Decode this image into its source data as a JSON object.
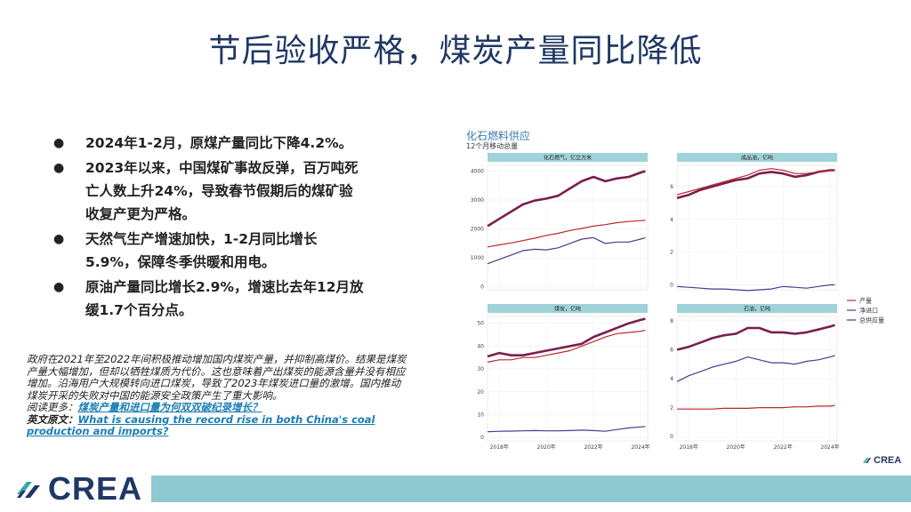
{
  "slide": {
    "title": "节后验收严格，煤炭产量同比降低",
    "bullets": [
      "2024年1-2月，原煤产量同比下降4.2%。",
      "2023年以来，中国煤矿事故反弹，百万吨死亡人数上升24%，导致春节假期后的煤矿验收复产更为严格。",
      "天然气生产增速加快，1-2月同比增长5.9%，保障冬季供暖和用电。",
      "原油产量同比增长2.9%，增速比去年12月放缓1.7个百分点。"
    ],
    "bullet_symbol": "●",
    "note": {
      "body": "政府在2021年至2022年间积极推动增加国内煤炭产量，并抑制高煤价。结果是煤炭产量大幅增加，但却以牺牲煤质为代价。这也意味着产出煤炭的能源含量并没有相应增加。沿海用户大规模转向进口煤炭，导致了2023年煤炭进口量的激增。国内推动煤炭开采的失败对中国的能源安全政策产生了重大影响。",
      "read_more_prefix": "阅读更多：",
      "read_more_link": "煤炭产量和进口量为何双双破纪录增长？",
      "en_prefix": "英文原文：",
      "en_link": "What is causing the record rise in both China's coal production and imports?"
    },
    "logo_text": "CREA",
    "small_logo_text": "CREA"
  },
  "chart_data": {
    "type": "line",
    "title": "化石燃料供应",
    "subtitle": "12个月移动总量",
    "x_tick_labels": [
      "2018年",
      "2020年",
      "2022年",
      "2024年"
    ],
    "x_ticks": [
      2018,
      2020,
      2022,
      2024
    ],
    "xlim": [
      2017.5,
      2024.3
    ],
    "legend": {
      "placement": "right",
      "entries": [
        "产量",
        "净进口",
        "总供应量"
      ]
    },
    "colors": {
      "产量": "#c0272d",
      "净进口": "#4a3b8f",
      "总供应量": "#7b1f4b",
      "header": "#9fd3d9"
    },
    "panels": [
      {
        "title": "化石燃气，亿立方米",
        "ylim": [
          -100,
          4200
        ],
        "yticks": [
          0,
          1000,
          2000,
          3000,
          4000
        ],
        "series": [
          {
            "name": "总供应量",
            "x": [
              2017.5,
              2018.0,
              2018.5,
              2019.0,
              2019.5,
              2020.0,
              2020.5,
              2021.0,
              2021.5,
              2022.0,
              2022.5,
              2023.0,
              2023.5,
              2024.0,
              2024.2
            ],
            "y": [
              2100,
              2350,
              2600,
              2850,
              2980,
              3050,
              3150,
              3400,
              3650,
              3800,
              3650,
              3750,
              3800,
              3950,
              4000
            ]
          },
          {
            "name": "产量",
            "x": [
              2017.5,
              2018.0,
              2018.5,
              2019.0,
              2019.5,
              2020.0,
              2020.5,
              2021.0,
              2021.5,
              2022.0,
              2022.5,
              2023.0,
              2023.5,
              2024.0,
              2024.2
            ],
            "y": [
              1380,
              1450,
              1520,
              1600,
              1680,
              1780,
              1850,
              1950,
              2020,
              2100,
              2150,
              2220,
              2260,
              2290,
              2300
            ]
          },
          {
            "name": "净进口",
            "x": [
              2017.5,
              2018.0,
              2018.5,
              2019.0,
              2019.5,
              2020.0,
              2020.5,
              2021.0,
              2021.5,
              2022.0,
              2022.5,
              2023.0,
              2023.5,
              2024.0,
              2024.2
            ],
            "y": [
              800,
              950,
              1100,
              1250,
              1300,
              1280,
              1350,
              1500,
              1650,
              1700,
              1500,
              1550,
              1550,
              1650,
              1700
            ]
          }
        ]
      },
      {
        "title": "成品油，亿吨",
        "ylim": [
          -0.3,
          7.3
        ],
        "yticks": [
          0,
          2,
          4,
          6
        ],
        "series": [
          {
            "name": "总供应量",
            "x": [
              2017.5,
              2018.0,
              2018.5,
              2019.0,
              2019.5,
              2020.0,
              2020.5,
              2021.0,
              2021.5,
              2022.0,
              2022.5,
              2023.0,
              2023.5,
              2024.0,
              2024.2
            ],
            "y": [
              5.3,
              5.5,
              5.8,
              6.0,
              6.2,
              6.4,
              6.5,
              6.8,
              6.9,
              6.8,
              6.6,
              6.7,
              6.9,
              7.0,
              7.0
            ]
          },
          {
            "name": "产量",
            "x": [
              2017.5,
              2018.0,
              2018.5,
              2019.0,
              2019.5,
              2020.0,
              2020.5,
              2021.0,
              2021.5,
              2022.0,
              2022.5,
              2023.0,
              2023.5,
              2024.0,
              2024.2
            ],
            "y": [
              5.5,
              5.7,
              5.9,
              6.1,
              6.3,
              6.5,
              6.7,
              7.0,
              7.1,
              7.0,
              6.8,
              6.8,
              6.9,
              7.0,
              7.0
            ]
          },
          {
            "name": "净进口",
            "x": [
              2017.5,
              2018.0,
              2018.5,
              2019.0,
              2019.5,
              2020.0,
              2020.5,
              2021.0,
              2021.5,
              2022.0,
              2022.5,
              2023.0,
              2023.5,
              2024.0,
              2024.2
            ],
            "y": [
              -0.1,
              -0.15,
              -0.2,
              -0.25,
              -0.25,
              -0.3,
              -0.35,
              -0.3,
              -0.25,
              -0.1,
              -0.15,
              -0.2,
              -0.1,
              0,
              0
            ]
          }
        ]
      },
      {
        "title": "煤炭，亿吨",
        "ylim": [
          -1.5,
          53
        ],
        "yticks": [
          0,
          10,
          20,
          30,
          40,
          50
        ],
        "series": [
          {
            "name": "总供应量",
            "x": [
              2017.5,
              2018.0,
              2018.5,
              2019.0,
              2019.5,
              2020.0,
              2020.5,
              2021.0,
              2021.5,
              2022.0,
              2022.5,
              2023.0,
              2023.5,
              2024.0,
              2024.2
            ],
            "y": [
              35.5,
              37,
              36,
              36,
              37,
              38,
              39,
              40,
              41,
              44,
              46,
              48,
              50,
              51.5,
              52
            ]
          },
          {
            "name": "产量",
            "x": [
              2017.5,
              2018.0,
              2018.5,
              2019.0,
              2019.5,
              2020.0,
              2020.5,
              2021.0,
              2021.5,
              2022.0,
              2022.5,
              2023.0,
              2023.5,
              2024.0,
              2024.2
            ],
            "y": [
              33,
              34,
              34,
              35,
              35,
              36,
              37,
              38,
              40,
              42,
              44,
              45.5,
              46,
              46.5,
              47
            ]
          },
          {
            "name": "净进口",
            "x": [
              2017.5,
              2018.0,
              2018.5,
              2019.0,
              2019.5,
              2020.0,
              2020.5,
              2021.0,
              2021.5,
              2022.0,
              2022.5,
              2023.0,
              2023.5,
              2024.0,
              2024.2
            ],
            "y": [
              2.5,
              2.7,
              2.8,
              2.9,
              3.0,
              2.9,
              2.9,
              3.0,
              3.2,
              3.0,
              2.7,
              3.5,
              4.2,
              4.6,
              4.8
            ]
          }
        ]
      },
      {
        "title": "石油，亿吨",
        "ylim": [
          -0.3,
          8.3
        ],
        "yticks": [
          0,
          2,
          4,
          6,
          8
        ],
        "series": [
          {
            "name": "总供应量",
            "x": [
              2017.5,
              2018.0,
              2018.5,
              2019.0,
              2019.5,
              2020.0,
              2020.5,
              2021.0,
              2021.5,
              2022.0,
              2022.5,
              2023.0,
              2023.5,
              2024.0,
              2024.2
            ],
            "y": [
              6.0,
              6.2,
              6.5,
              6.8,
              7.0,
              7.1,
              7.5,
              7.5,
              7.2,
              7.2,
              7.1,
              7.2,
              7.4,
              7.6,
              7.7
            ]
          },
          {
            "name": "产量",
            "x": [
              2017.5,
              2018.0,
              2018.5,
              2019.0,
              2019.5,
              2020.0,
              2020.5,
              2021.0,
              2021.5,
              2022.0,
              2022.5,
              2023.0,
              2023.5,
              2024.0,
              2024.2
            ],
            "y": [
              1.9,
              1.9,
              1.9,
              1.9,
              1.95,
              1.95,
              1.95,
              2.0,
              2.0,
              2.0,
              2.05,
              2.05,
              2.1,
              2.1,
              2.15
            ]
          },
          {
            "name": "净进口",
            "x": [
              2017.5,
              2018.0,
              2018.5,
              2019.0,
              2019.5,
              2020.0,
              2020.5,
              2021.0,
              2021.5,
              2022.0,
              2022.5,
              2023.0,
              2023.5,
              2024.0,
              2024.2
            ],
            "y": [
              3.8,
              4.2,
              4.5,
              4.8,
              5.0,
              5.2,
              5.5,
              5.3,
              5.1,
              5.1,
              5.0,
              5.2,
              5.3,
              5.5,
              5.6
            ]
          }
        ]
      }
    ]
  }
}
